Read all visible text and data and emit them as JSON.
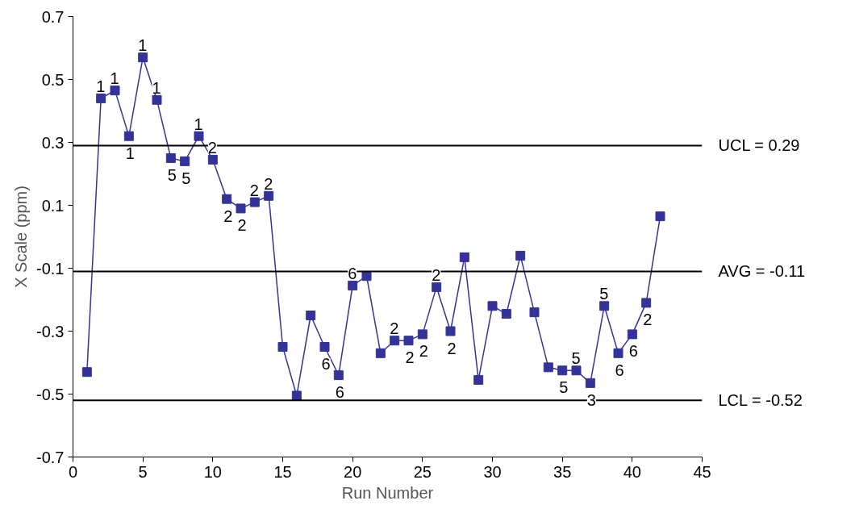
{
  "chart_data": {
    "type": "line",
    "xlabel": "Run Number",
    "ylabel": "X Scale (ppm)",
    "x": [
      1,
      2,
      3,
      4,
      5,
      6,
      7,
      8,
      9,
      10,
      11,
      12,
      13,
      14,
      15,
      16,
      17,
      18,
      19,
      20,
      21,
      22,
      23,
      24,
      25,
      26,
      27,
      28,
      29,
      30,
      31,
      32,
      33,
      34,
      35,
      36,
      37,
      38,
      39,
      40,
      41,
      42
    ],
    "series": [
      {
        "color": "#333399",
        "values": [
          -0.43,
          0.44,
          0.465,
          0.32,
          0.57,
          0.435,
          0.25,
          0.24,
          0.32,
          0.245,
          0.12,
          0.09,
          0.11,
          0.13,
          -0.35,
          -0.505,
          -0.25,
          -0.35,
          -0.44,
          -0.155,
          -0.125,
          -0.37,
          -0.33,
          -0.33,
          -0.31,
          -0.16,
          -0.3,
          -0.065,
          -0.455,
          -0.22,
          -0.245,
          -0.06,
          -0.24,
          -0.415,
          -0.425,
          -0.425,
          -0.465,
          -0.22,
          -0.37,
          -0.31,
          -0.21,
          0.065
        ]
      }
    ],
    "xlim": [
      0,
      45
    ],
    "xticks": [
      0,
      5,
      10,
      15,
      20,
      25,
      30,
      35,
      40,
      45
    ],
    "ylim": [
      -0.7,
      0.7
    ],
    "yticks": [
      {
        "value": -0.7,
        "label": "-0.7"
      },
      {
        "value": -0.5,
        "label": "-0.5"
      },
      {
        "value": -0.3,
        "label": "-0.3"
      },
      {
        "value": -0.1,
        "label": "-0.1"
      },
      {
        "value": 0.1,
        "label": "0.1"
      },
      {
        "value": 0.3,
        "label": "0.3"
      },
      {
        "value": 0.5,
        "label": "0.5"
      },
      {
        "value": 0.7,
        "label": "0.7"
      }
    ],
    "ref_lines": [
      {
        "axis": "y",
        "value": 0.29,
        "label": "UCL = 0.29",
        "color": "#000000"
      },
      {
        "axis": "y",
        "value": -0.11,
        "label": "AVG = -0.11",
        "color": "#000000"
      },
      {
        "axis": "y",
        "value": -0.52,
        "label": "LCL = -0.52",
        "color": "#000000"
      }
    ],
    "annotations": [
      {
        "text": "1",
        "x": 2,
        "y": 0.44
      },
      {
        "text": "1",
        "x": 3,
        "y": 0.465
      },
      {
        "text": "1",
        "x": 4,
        "y": 0.32
      },
      {
        "text": "1",
        "x": 5,
        "y": 0.57
      },
      {
        "text": "1",
        "x": 6,
        "y": 0.435
      },
      {
        "text": "5",
        "x": 7,
        "y": 0.25
      },
      {
        "text": "5",
        "x": 8,
        "y": 0.24
      },
      {
        "text": "1",
        "x": 9,
        "y": 0.32
      },
      {
        "text": "2",
        "x": 10,
        "y": 0.245
      },
      {
        "text": "2",
        "x": 11,
        "y": 0.12
      },
      {
        "text": "2",
        "x": 12,
        "y": 0.09
      },
      {
        "text": "2",
        "x": 13,
        "y": 0.11
      },
      {
        "text": "2",
        "x": 14,
        "y": 0.13
      },
      {
        "text": "6",
        "x": 18,
        "y": -0.35
      },
      {
        "text": "6",
        "x": 19,
        "y": -0.44
      },
      {
        "text": "6",
        "x": 20,
        "y": -0.155
      },
      {
        "text": "2",
        "x": 23,
        "y": -0.33
      },
      {
        "text": "2",
        "x": 24,
        "y": -0.33
      },
      {
        "text": "2",
        "x": 25,
        "y": -0.31
      },
      {
        "text": "2",
        "x": 26,
        "y": -0.16
      },
      {
        "text": "2",
        "x": 27,
        "y": -0.3
      },
      {
        "text": "5",
        "x": 35,
        "y": -0.425
      },
      {
        "text": "5",
        "x": 36,
        "y": -0.425
      },
      {
        "text": "3",
        "x": 37,
        "y": -0.465
      },
      {
        "text": "5",
        "x": 38,
        "y": -0.22
      },
      {
        "text": "6",
        "x": 39,
        "y": -0.37
      },
      {
        "text": "6",
        "x": 40,
        "y": -0.31
      },
      {
        "text": "2",
        "x": 41,
        "y": -0.21
      }
    ],
    "marker": "square",
    "line_style": "solid",
    "grid": false
  }
}
